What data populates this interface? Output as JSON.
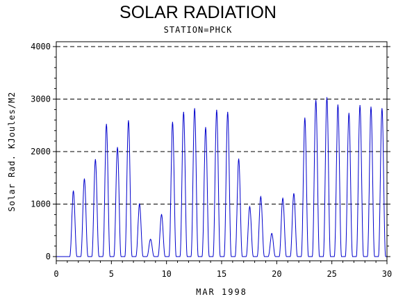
{
  "chart_data": {
    "type": "line",
    "title": "SOLAR RADIATION",
    "subtitle": "STATION=PHCK",
    "xlabel": "MAR 1998",
    "ylabel": "Solar Rad. KJoules/M2",
    "xlim": [
      0,
      30
    ],
    "ylim": [
      0,
      4000
    ],
    "xticks": [
      0,
      5,
      10,
      15,
      20,
      25,
      30
    ],
    "yticks": [
      0,
      1000,
      2000,
      3000,
      4000
    ],
    "grid": "horizontal-dashed",
    "line_color": "#0000cc",
    "series": [
      {
        "daily_peaks": [
          {
            "day": 1,
            "x": 1.55,
            "y": 1250
          },
          {
            "day": 2,
            "x": 2.55,
            "y": 1480
          },
          {
            "day": 3,
            "x": 3.55,
            "y": 1850
          },
          {
            "day": 4,
            "x": 4.55,
            "y": 2520
          },
          {
            "day": 5,
            "x": 5.55,
            "y": 2080
          },
          {
            "day": 6,
            "x": 6.55,
            "y": 2590
          },
          {
            "day": 7,
            "x": 7.55,
            "y": 1000
          },
          {
            "day": 8,
            "x": 8.55,
            "y": 330
          },
          {
            "day": 9,
            "x": 9.55,
            "y": 800
          },
          {
            "day": 10,
            "x": 10.55,
            "y": 2560
          },
          {
            "day": 11,
            "x": 11.55,
            "y": 2750
          },
          {
            "day": 12,
            "x": 12.55,
            "y": 2820
          },
          {
            "day": 13,
            "x": 13.55,
            "y": 2460
          },
          {
            "day": 14,
            "x": 14.55,
            "y": 2790
          },
          {
            "day": 15,
            "x": 15.55,
            "y": 2750
          },
          {
            "day": 16,
            "x": 16.55,
            "y": 1860
          },
          {
            "day": 17,
            "x": 17.55,
            "y": 950
          },
          {
            "day": 18,
            "x": 18.55,
            "y": 1140
          },
          {
            "day": 19,
            "x": 19.55,
            "y": 440
          },
          {
            "day": 20,
            "x": 20.55,
            "y": 1110
          },
          {
            "day": 21,
            "x": 21.55,
            "y": 1200
          },
          {
            "day": 22,
            "x": 22.55,
            "y": 2640
          },
          {
            "day": 23,
            "x": 23.55,
            "y": 2980
          },
          {
            "day": 24,
            "x": 24.55,
            "y": 3030
          },
          {
            "day": 25,
            "x": 25.55,
            "y": 2890
          },
          {
            "day": 26,
            "x": 26.55,
            "y": 2730
          },
          {
            "day": 27,
            "x": 27.55,
            "y": 2880
          },
          {
            "day": 28,
            "x": 28.55,
            "y": 2850
          },
          {
            "day": 29,
            "x": 29.55,
            "y": 2820
          }
        ]
      }
    ]
  }
}
